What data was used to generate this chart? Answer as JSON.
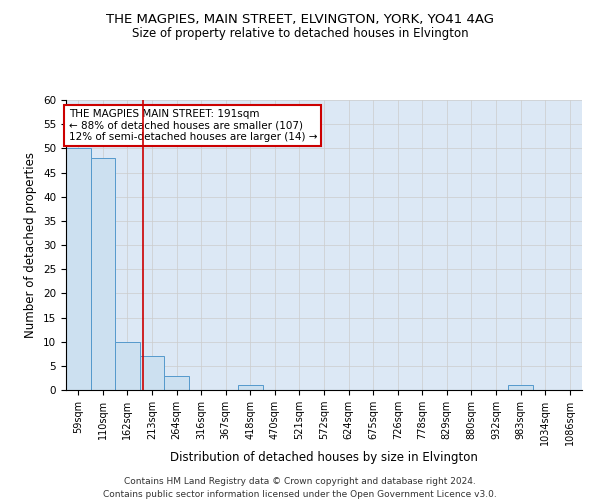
{
  "title": "THE MAGPIES, MAIN STREET, ELVINGTON, YORK, YO41 4AG",
  "subtitle": "Size of property relative to detached houses in Elvington",
  "xlabel": "Distribution of detached houses by size in Elvington",
  "ylabel": "Number of detached properties",
  "footnote1": "Contains HM Land Registry data © Crown copyright and database right 2024.",
  "footnote2": "Contains public sector information licensed under the Open Government Licence v3.0.",
  "bin_labels": [
    "59sqm",
    "110sqm",
    "162sqm",
    "213sqm",
    "264sqm",
    "316sqm",
    "367sqm",
    "418sqm",
    "470sqm",
    "521sqm",
    "572sqm",
    "624sqm",
    "675sqm",
    "726sqm",
    "778sqm",
    "829sqm",
    "880sqm",
    "932sqm",
    "983sqm",
    "1034sqm",
    "1086sqm"
  ],
  "bar_values": [
    50,
    48,
    10,
    7,
    3,
    0,
    0,
    1,
    0,
    0,
    0,
    0,
    0,
    0,
    0,
    0,
    0,
    0,
    1,
    0,
    0
  ],
  "bar_color": "#cce0f0",
  "bar_edge_color": "#5599cc",
  "red_line_x": 2.62,
  "annotation_text": "THE MAGPIES MAIN STREET: 191sqm\n← 88% of detached houses are smaller (107)\n12% of semi-detached houses are larger (14) →",
  "annotation_box_color": "#ffffff",
  "annotation_box_edge_color": "#cc0000",
  "red_line_color": "#cc0000",
  "ylim": [
    0,
    60
  ],
  "yticks": [
    0,
    5,
    10,
    15,
    20,
    25,
    30,
    35,
    40,
    45,
    50,
    55,
    60
  ],
  "grid_color": "#cccccc",
  "background_color": "#dce8f5"
}
